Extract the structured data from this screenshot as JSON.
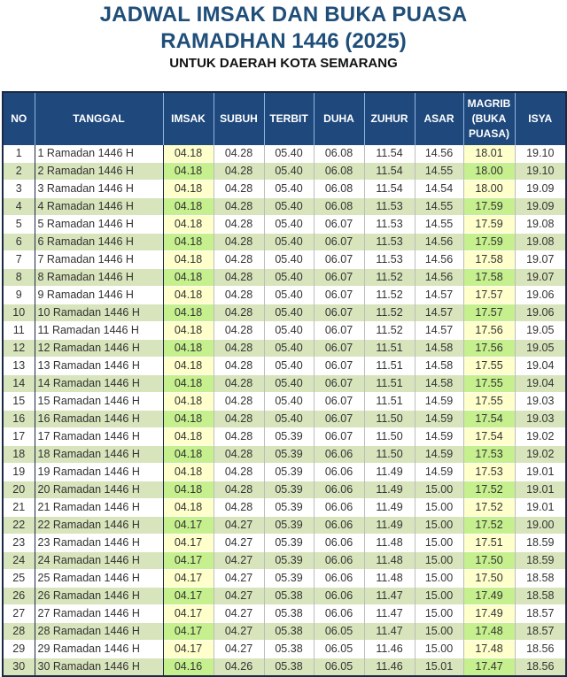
{
  "header": {
    "title_line1": "JADWAL IMSAK DAN BUKA PUASA",
    "title_line2": "RAMADHAN 1446 (2025)",
    "subtitle": "UNTUK DAERAH KOTA SEMARANG"
  },
  "colors": {
    "title": "#1f4e79",
    "header_bg": "#1f497d",
    "header_text": "#ffffff",
    "row_alt_bg": "#d8e4bc",
    "highlight_odd": "#ffffcc",
    "highlight_even": "#c6ef8e"
  },
  "table": {
    "columns": {
      "no": "NO",
      "tanggal": "TANGGAL",
      "imsak": "IMSAK",
      "subuh": "SUBUH",
      "terbit": "TERBIT",
      "duha": "DUHA",
      "zuhur": "ZUHUR",
      "asar": "ASAR",
      "magrib_l1": "MAGRIB",
      "magrib_l2": "(BUKA",
      "magrib_l3": "PUASA)",
      "isya": "ISYA"
    },
    "rows": [
      {
        "no": "1",
        "tanggal": "1 Ramadan 1446 H",
        "imsak": "04.18",
        "subuh": "04.28",
        "terbit": "05.40",
        "duha": "06.08",
        "zuhur": "11.54",
        "asar": "14.56",
        "magrib": "18.01",
        "isya": "19.10"
      },
      {
        "no": "2",
        "tanggal": "2 Ramadan 1446 H",
        "imsak": "04.18",
        "subuh": "04.28",
        "terbit": "05.40",
        "duha": "06.08",
        "zuhur": "11.54",
        "asar": "14.55",
        "magrib": "18.00",
        "isya": "19.10"
      },
      {
        "no": "3",
        "tanggal": "3 Ramadan 1446 H",
        "imsak": "04.18",
        "subuh": "04.28",
        "terbit": "05.40",
        "duha": "06.08",
        "zuhur": "11.54",
        "asar": "14.54",
        "magrib": "18.00",
        "isya": "19.09"
      },
      {
        "no": "4",
        "tanggal": "4 Ramadan 1446 H",
        "imsak": "04.18",
        "subuh": "04.28",
        "terbit": "05.40",
        "duha": "06.08",
        "zuhur": "11.53",
        "asar": "14.55",
        "magrib": "17.59",
        "isya": "19.09"
      },
      {
        "no": "5",
        "tanggal": "5 Ramadan 1446 H",
        "imsak": "04.18",
        "subuh": "04.28",
        "terbit": "05.40",
        "duha": "06.07",
        "zuhur": "11.53",
        "asar": "14.55",
        "magrib": "17.59",
        "isya": "19.08"
      },
      {
        "no": "6",
        "tanggal": "6 Ramadan 1446 H",
        "imsak": "04.18",
        "subuh": "04.28",
        "terbit": "05.40",
        "duha": "06.07",
        "zuhur": "11.53",
        "asar": "14.56",
        "magrib": "17.59",
        "isya": "19.08"
      },
      {
        "no": "7",
        "tanggal": "7 Ramadan 1446 H",
        "imsak": "04.18",
        "subuh": "04.28",
        "terbit": "05.40",
        "duha": "06.07",
        "zuhur": "11.53",
        "asar": "14.56",
        "magrib": "17.58",
        "isya": "19.07"
      },
      {
        "no": "8",
        "tanggal": "8 Ramadan 1446 H",
        "imsak": "04.18",
        "subuh": "04.28",
        "terbit": "05.40",
        "duha": "06.07",
        "zuhur": "11.52",
        "asar": "14.56",
        "magrib": "17.58",
        "isya": "19.07"
      },
      {
        "no": "9",
        "tanggal": "9 Ramadan 1446 H",
        "imsak": "04.18",
        "subuh": "04.28",
        "terbit": "05.40",
        "duha": "06.07",
        "zuhur": "11.52",
        "asar": "14.57",
        "magrib": "17.57",
        "isya": "19.06"
      },
      {
        "no": "10",
        "tanggal": "10 Ramadan 1446 H",
        "imsak": "04.18",
        "subuh": "04.28",
        "terbit": "05.40",
        "duha": "06.07",
        "zuhur": "11.52",
        "asar": "14.57",
        "magrib": "17.57",
        "isya": "19.06"
      },
      {
        "no": "11",
        "tanggal": "11 Ramadan 1446 H",
        "imsak": "04.18",
        "subuh": "04.28",
        "terbit": "05.40",
        "duha": "06.07",
        "zuhur": "11.52",
        "asar": "14.57",
        "magrib": "17.56",
        "isya": "19.05"
      },
      {
        "no": "12",
        "tanggal": "12 Ramadan 1446 H",
        "imsak": "04.18",
        "subuh": "04.28",
        "terbit": "05.40",
        "duha": "06.07",
        "zuhur": "11.51",
        "asar": "14.58",
        "magrib": "17.56",
        "isya": "19.05"
      },
      {
        "no": "13",
        "tanggal": "13 Ramadan 1446 H",
        "imsak": "04.18",
        "subuh": "04.28",
        "terbit": "05.40",
        "duha": "06.07",
        "zuhur": "11.51",
        "asar": "14.58",
        "magrib": "17.55",
        "isya": "19.04"
      },
      {
        "no": "14",
        "tanggal": "14 Ramadan 1446 H",
        "imsak": "04.18",
        "subuh": "04.28",
        "terbit": "05.40",
        "duha": "06.07",
        "zuhur": "11.51",
        "asar": "14.58",
        "magrib": "17.55",
        "isya": "19.04"
      },
      {
        "no": "15",
        "tanggal": "15 Ramadan 1446 H",
        "imsak": "04.18",
        "subuh": "04.28",
        "terbit": "05.40",
        "duha": "06.07",
        "zuhur": "11.51",
        "asar": "14.59",
        "magrib": "17.55",
        "isya": "19.03"
      },
      {
        "no": "16",
        "tanggal": "16 Ramadan 1446 H",
        "imsak": "04.18",
        "subuh": "04.28",
        "terbit": "05.40",
        "duha": "06.07",
        "zuhur": "11.50",
        "asar": "14.59",
        "magrib": "17.54",
        "isya": "19.03"
      },
      {
        "no": "17",
        "tanggal": "17 Ramadan 1446 H",
        "imsak": "04.18",
        "subuh": "04.28",
        "terbit": "05.39",
        "duha": "06.07",
        "zuhur": "11.50",
        "asar": "14.59",
        "magrib": "17.54",
        "isya": "19.02"
      },
      {
        "no": "18",
        "tanggal": "18 Ramadan 1446 H",
        "imsak": "04.18",
        "subuh": "04.28",
        "terbit": "05.39",
        "duha": "06.06",
        "zuhur": "11.50",
        "asar": "14.59",
        "magrib": "17.53",
        "isya": "19.02"
      },
      {
        "no": "19",
        "tanggal": "19 Ramadan 1446 H",
        "imsak": "04.18",
        "subuh": "04.28",
        "terbit": "05.39",
        "duha": "06.06",
        "zuhur": "11.49",
        "asar": "14.59",
        "magrib": "17.53",
        "isya": "19.01"
      },
      {
        "no": "20",
        "tanggal": "20 Ramadan 1446 H",
        "imsak": "04.18",
        "subuh": "04.28",
        "terbit": "05.39",
        "duha": "06.06",
        "zuhur": "11.49",
        "asar": "15.00",
        "magrib": "17.52",
        "isya": "19.01"
      },
      {
        "no": "21",
        "tanggal": "21 Ramadan 1446 H",
        "imsak": "04.18",
        "subuh": "04.28",
        "terbit": "05.39",
        "duha": "06.06",
        "zuhur": "11.49",
        "asar": "15.00",
        "magrib": "17.52",
        "isya": "19.01"
      },
      {
        "no": "22",
        "tanggal": "22 Ramadan 1446 H",
        "imsak": "04.17",
        "subuh": "04.27",
        "terbit": "05.39",
        "duha": "06.06",
        "zuhur": "11.49",
        "asar": "15.00",
        "magrib": "17.52",
        "isya": "19.00"
      },
      {
        "no": "23",
        "tanggal": "23 Ramadan 1446 H",
        "imsak": "04.17",
        "subuh": "04.27",
        "terbit": "05.39",
        "duha": "06.06",
        "zuhur": "11.48",
        "asar": "15.00",
        "magrib": "17.51",
        "isya": "18.59"
      },
      {
        "no": "24",
        "tanggal": "24 Ramadan 1446 H",
        "imsak": "04.17",
        "subuh": "04.27",
        "terbit": "05.39",
        "duha": "06.06",
        "zuhur": "11.48",
        "asar": "15.00",
        "magrib": "17.50",
        "isya": "18.59"
      },
      {
        "no": "25",
        "tanggal": "25 Ramadan 1446 H",
        "imsak": "04.17",
        "subuh": "04.27",
        "terbit": "05.39",
        "duha": "06.06",
        "zuhur": "11.48",
        "asar": "15.00",
        "magrib": "17.50",
        "isya": "18.58"
      },
      {
        "no": "26",
        "tanggal": "26 Ramadan 1446 H",
        "imsak": "04.17",
        "subuh": "04.27",
        "terbit": "05.38",
        "duha": "06.06",
        "zuhur": "11.47",
        "asar": "15.00",
        "magrib": "17.49",
        "isya": "18.58"
      },
      {
        "no": "27",
        "tanggal": "27 Ramadan 1446 H",
        "imsak": "04.17",
        "subuh": "04.27",
        "terbit": "05.38",
        "duha": "06.06",
        "zuhur": "11.47",
        "asar": "15.00",
        "magrib": "17.49",
        "isya": "18.57"
      },
      {
        "no": "28",
        "tanggal": "28 Ramadan 1446 H",
        "imsak": "04.17",
        "subuh": "04.27",
        "terbit": "05.38",
        "duha": "06.05",
        "zuhur": "11.47",
        "asar": "15.00",
        "magrib": "17.48",
        "isya": "18.57"
      },
      {
        "no": "29",
        "tanggal": "29 Ramadan 1446 H",
        "imsak": "04.17",
        "subuh": "04.27",
        "terbit": "05.38",
        "duha": "06.05",
        "zuhur": "11.46",
        "asar": "15.00",
        "magrib": "17.48",
        "isya": "18.56"
      },
      {
        "no": "30",
        "tanggal": "30 Ramadan 1446 H",
        "imsak": "04.16",
        "subuh": "04.26",
        "terbit": "05.38",
        "duha": "06.05",
        "zuhur": "11.46",
        "asar": "15.01",
        "magrib": "17.47",
        "isya": "18.56"
      }
    ]
  }
}
